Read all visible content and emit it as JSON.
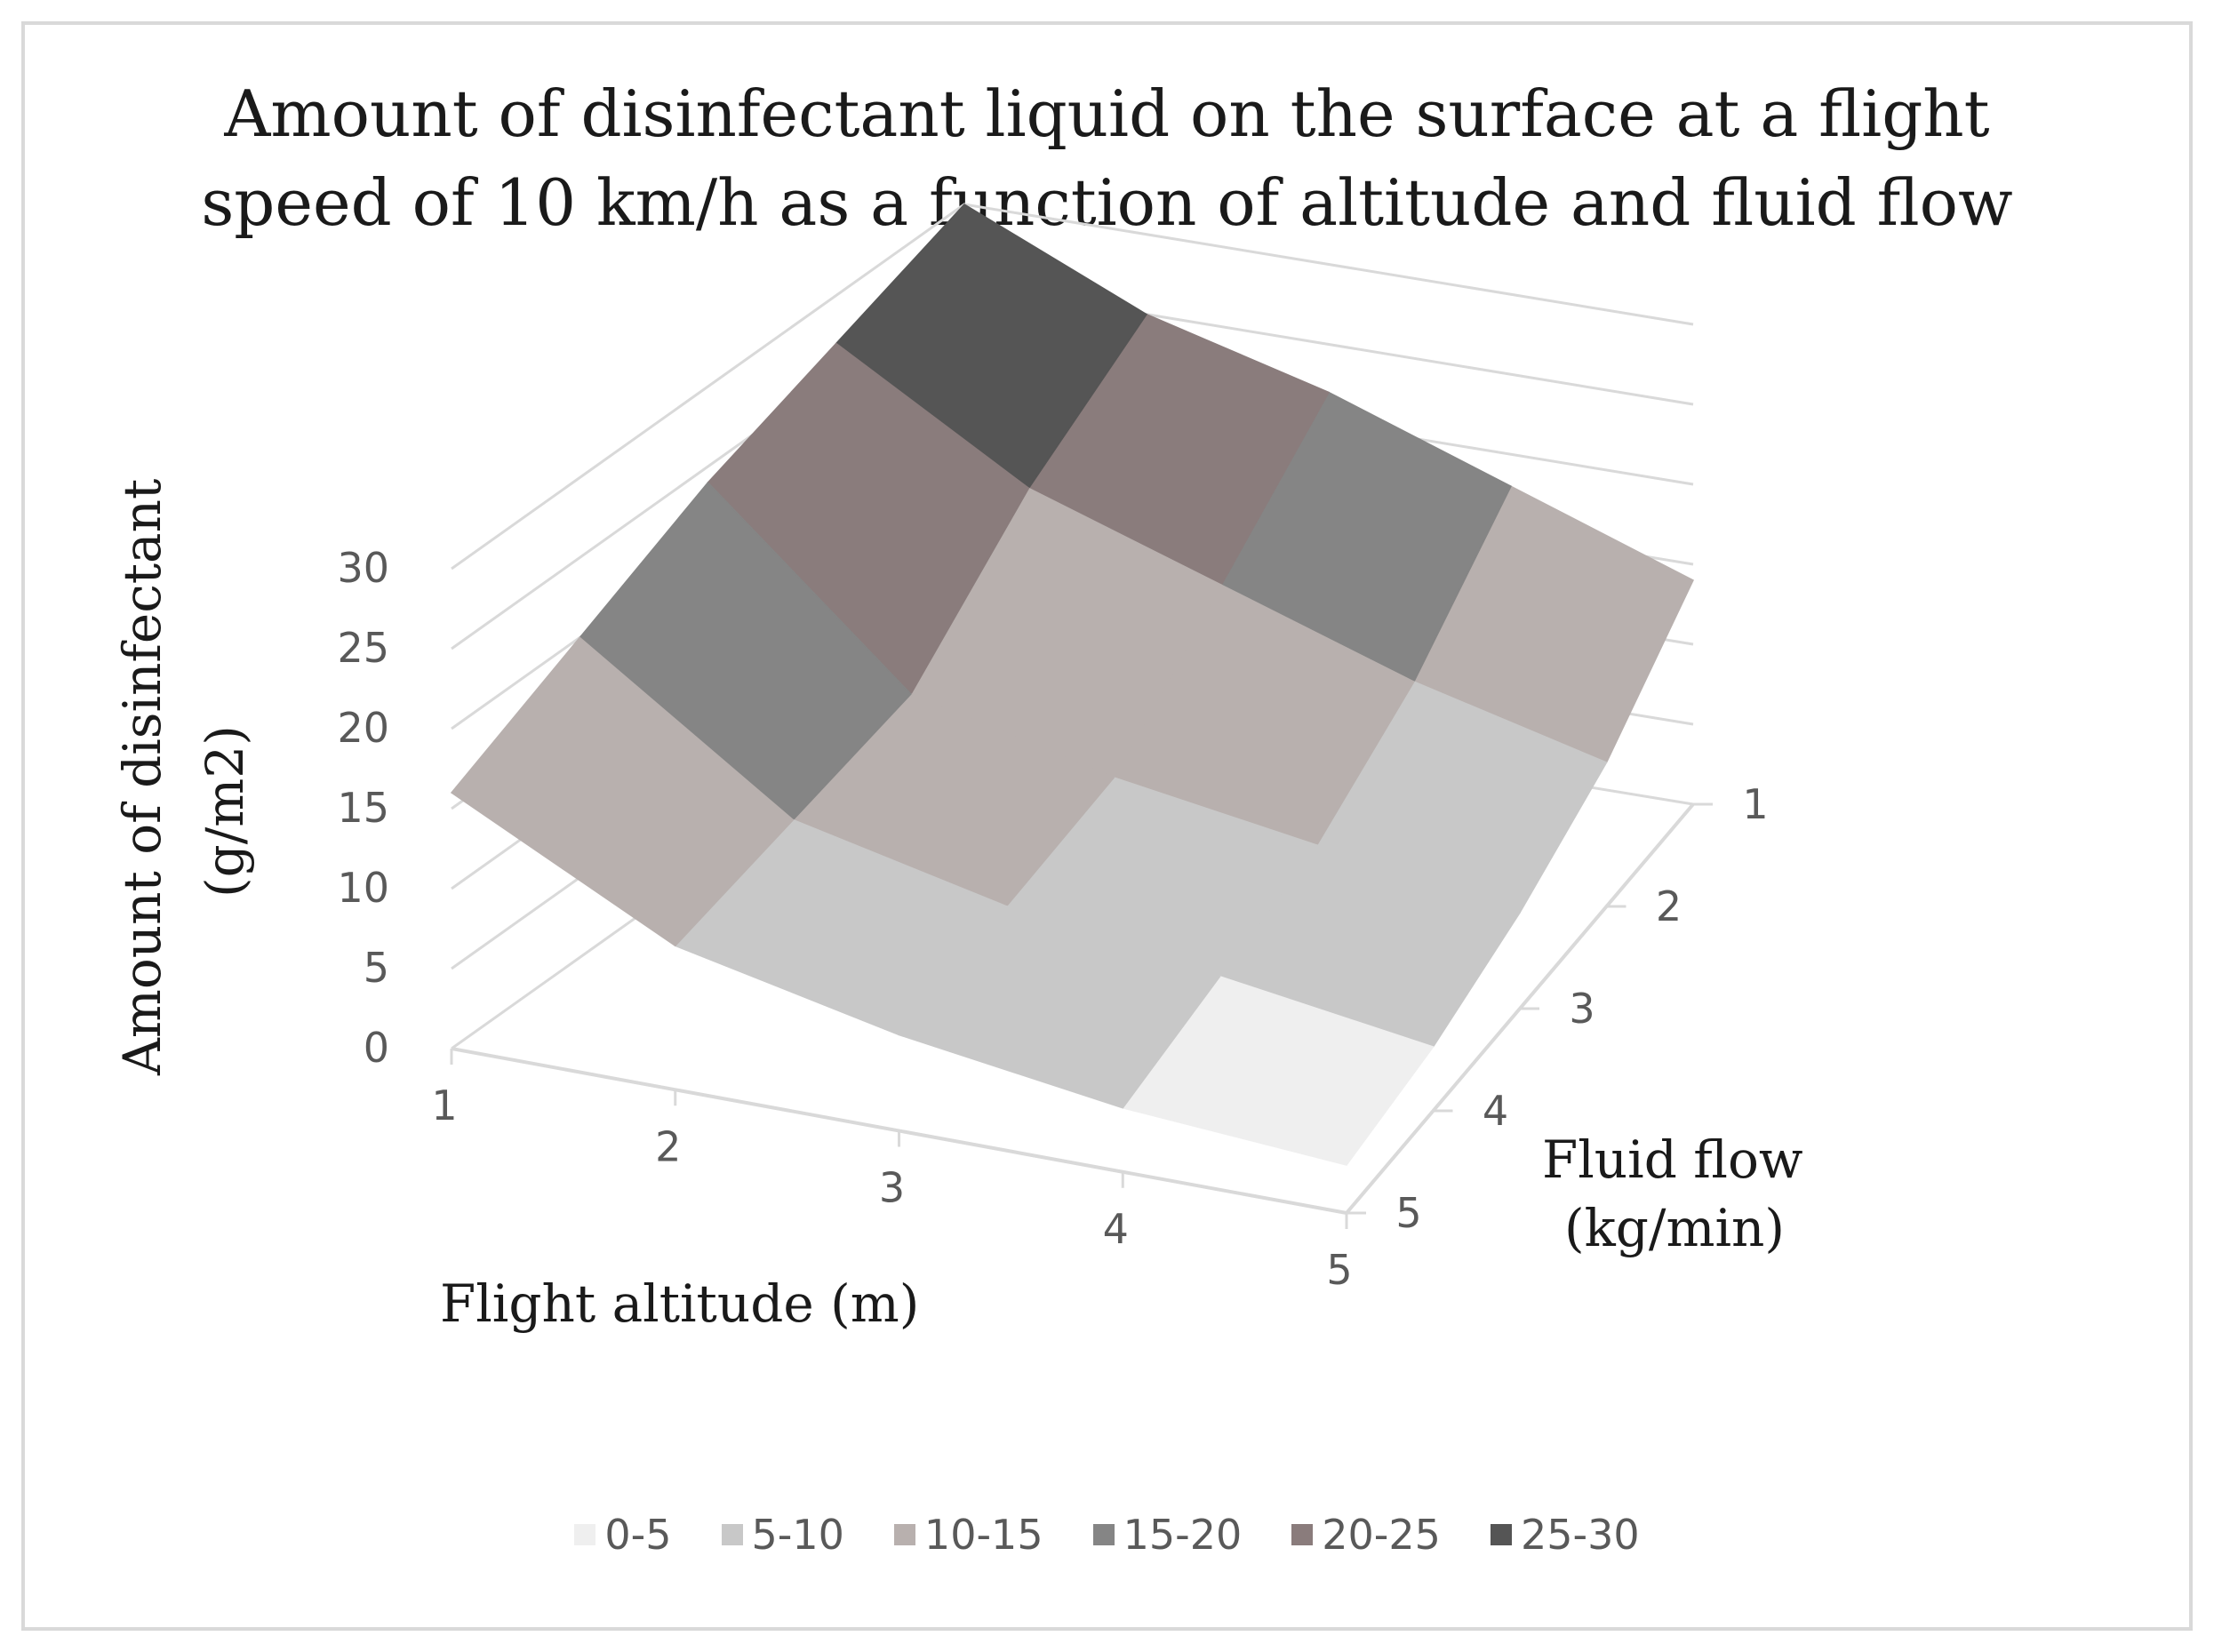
{
  "chart_data": {
    "type": "surface",
    "title": [
      "Amount of disinfectant liquid on the surface at a flight",
      "speed of 10 km/h as a function of altitude and fluid flow"
    ],
    "xlabel": "Flight altitude (m)",
    "ylabel": [
      "Fluid flow",
      "(kg/min)"
    ],
    "zlabel": [
      "Amount of disinfectant",
      "(g/m2)"
    ],
    "x_ticks": [
      "1",
      "2",
      "3",
      "4",
      "5"
    ],
    "y_ticks": [
      "1",
      "2",
      "3",
      "4",
      "5"
    ],
    "z_ticks": [
      "0",
      "5",
      "10",
      "15",
      "20",
      "25",
      "30"
    ],
    "zlim": [
      0,
      30
    ],
    "x": [
      1,
      2,
      3,
      4,
      5
    ],
    "y": [
      1,
      2,
      3,
      4,
      5
    ],
    "z": [
      [
        30,
        25,
        22,
        18,
        14
      ],
      [
        27,
        20,
        16,
        12,
        9
      ],
      [
        24,
        13,
        10,
        8,
        6
      ],
      [
        20,
        11,
        8,
        6,
        4
      ],
      [
        16,
        9,
        6,
        4,
        3
      ]
    ],
    "bands": [
      {
        "name": "0-5",
        "color": "#efefef"
      },
      {
        "name": "5-10",
        "color": "#c8c8c8"
      },
      {
        "name": "10-15",
        "color": "#b8b0ae"
      },
      {
        "name": "15-20",
        "color": "#858585"
      },
      {
        "name": "20-25",
        "color": "#8a7c7c"
      },
      {
        "name": "25-30",
        "color": "#555555"
      }
    ],
    "gridline_color": "#d9d9d9",
    "legend_position": "bottom"
  }
}
